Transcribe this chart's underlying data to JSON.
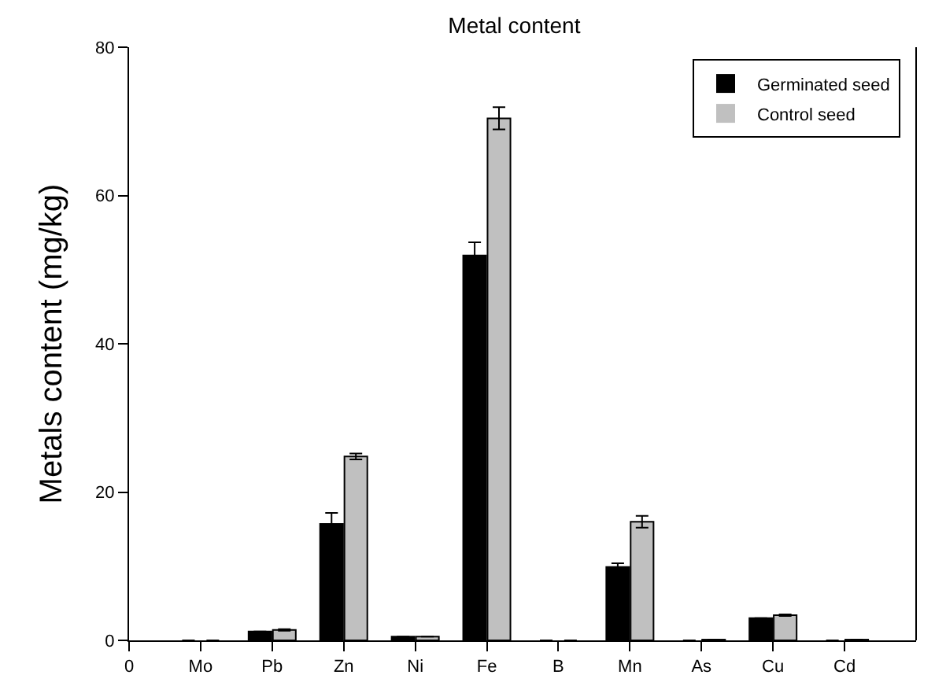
{
  "chart_data": {
    "type": "bar",
    "title": "Metal content",
    "ylabel": "Metals content (mg/kg)",
    "categories": [
      "0",
      "Mo",
      "Pb",
      "Zn",
      "Ni",
      "Fe",
      "B",
      "Mn",
      "As",
      "Cu",
      "Cd",
      null
    ],
    "series": [
      {
        "name": "Germinated seed",
        "color": "#000000",
        "values": [
          null,
          0,
          1.2,
          15.7,
          0.5,
          51.9,
          0,
          9.9,
          0,
          3.0,
          0,
          null
        ],
        "errors": [
          null,
          null,
          null,
          1.5,
          null,
          1.8,
          null,
          0.5,
          null,
          null,
          null,
          null
        ]
      },
      {
        "name": "Control seed",
        "color": "#c0c0c0",
        "values": [
          null,
          0,
          1.4,
          24.8,
          0.5,
          70.4,
          0,
          16.0,
          0.1,
          3.4,
          0.1,
          null
        ],
        "errors": [
          null,
          null,
          0.1,
          0.4,
          null,
          1.5,
          null,
          0.8,
          null,
          0.1,
          null,
          null
        ]
      }
    ],
    "ylim": [
      0,
      80
    ],
    "yticks": [
      0,
      20,
      40,
      60,
      80
    ],
    "legend": "top right"
  }
}
